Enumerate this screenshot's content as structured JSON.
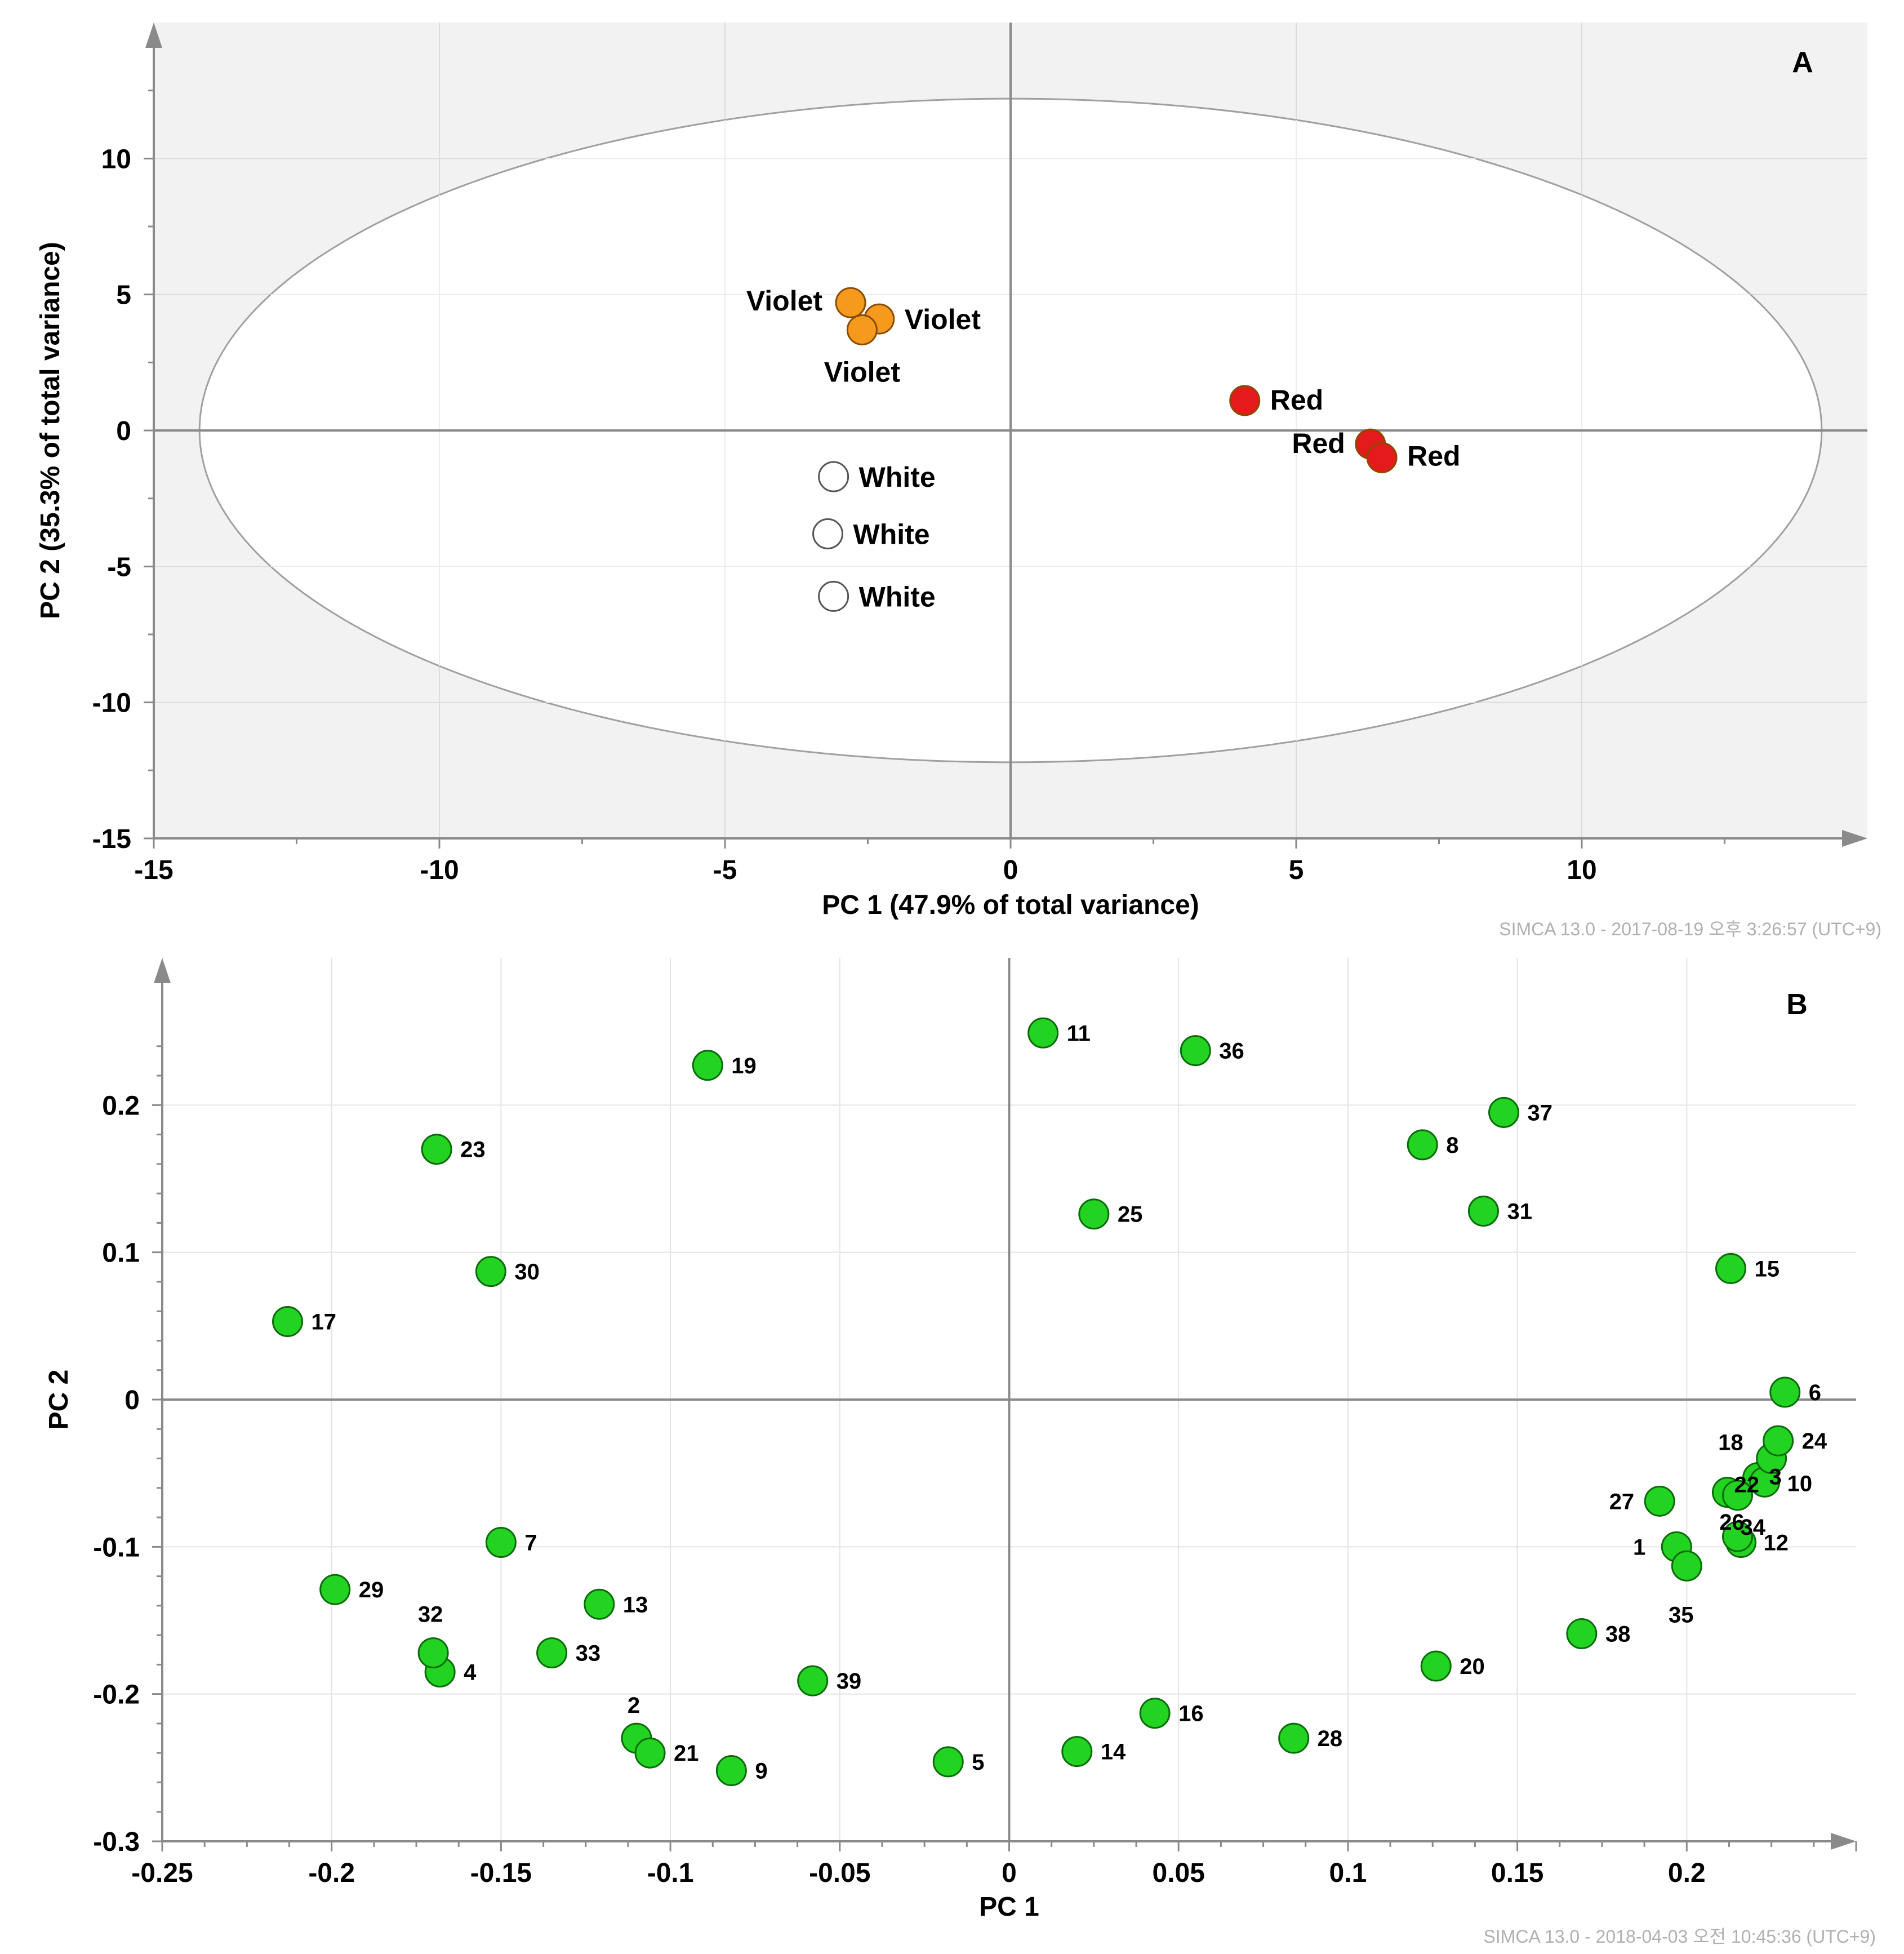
{
  "chart_data": [
    {
      "type": "scatter",
      "panel_label": "A",
      "xlabel": "PC 1 (47.9% of total variance)",
      "ylabel": "PC 2 (35.3% of total variance)",
      "xlim": [
        -15,
        15
      ],
      "ylim": [
        -15,
        15
      ],
      "xticks": [
        "-15",
        "-10",
        "-5",
        "0",
        "5",
        "10"
      ],
      "yticks": [
        "10",
        "5",
        "0",
        "-5",
        "-10",
        "-15"
      ],
      "xtick_values": [
        -15,
        -10,
        -5,
        0,
        5,
        10
      ],
      "ytick_values": [
        10,
        5,
        0,
        -5,
        -10,
        -15
      ],
      "ellipse": {
        "cx": 0,
        "cy": 0,
        "rx": 14.2,
        "ry": 12.2
      },
      "grid": true,
      "colors": {
        "Violet": "#f59a1c",
        "Red": "#e41a1c",
        "White": "#ffffff",
        "background": "#f2f2f2",
        "inside": "#ffffff"
      },
      "points": [
        {
          "label": "Violet",
          "group": "Violet",
          "x": -2.8,
          "y": 4.7
        },
        {
          "label": "Violet",
          "group": "Violet",
          "x": -2.3,
          "y": 4.1
        },
        {
          "label": "Violet",
          "group": "Violet",
          "x": -2.6,
          "y": 3.7
        },
        {
          "label": "Red",
          "group": "Red",
          "x": 4.1,
          "y": 1.1
        },
        {
          "label": "Red",
          "group": "Red",
          "x": 6.3,
          "y": -0.5
        },
        {
          "label": "Red",
          "group": "Red",
          "x": 6.5,
          "y": -1.0
        },
        {
          "label": "White",
          "group": "White",
          "x": -3.1,
          "y": -1.7
        },
        {
          "label": "White",
          "group": "White",
          "x": -3.2,
          "y": -3.8
        },
        {
          "label": "White",
          "group": "White",
          "x": -3.1,
          "y": -6.1
        }
      ],
      "watermark": "SIMCA 13.0 - 2017-08-19 오후 3:26:57 (UTC+9)"
    },
    {
      "type": "scatter",
      "panel_label": "B",
      "xlabel": "PC 1",
      "ylabel": "PC 2",
      "xlim": [
        -0.25,
        0.25
      ],
      "ylim": [
        -0.3,
        0.3
      ],
      "xticks": [
        "-0.25",
        "-0.2",
        "-0.15",
        "-0.1",
        "-0.05",
        "0",
        "0.05",
        "0.1",
        "0.15",
        "0.2"
      ],
      "yticks": [
        "0.2",
        "0.1",
        "0",
        "-0.1",
        "-0.2",
        "-0.3"
      ],
      "xtick_values": [
        -0.25,
        -0.2,
        -0.15,
        -0.1,
        -0.05,
        0,
        0.05,
        0.1,
        0.15,
        0.2
      ],
      "ytick_values": [
        0.2,
        0.1,
        0,
        -0.1,
        -0.2,
        -0.3
      ],
      "grid": true,
      "colors": {
        "point": "#22d322",
        "background": "#ffffff"
      },
      "points": [
        {
          "label": "1",
          "x": 0.197,
          "y": -0.1
        },
        {
          "label": "2",
          "x": -0.11,
          "y": -0.23
        },
        {
          "label": "3",
          "x": 0.221,
          "y": -0.053
        },
        {
          "label": "4",
          "x": -0.168,
          "y": -0.185
        },
        {
          "label": "5",
          "x": -0.018,
          "y": -0.246
        },
        {
          "label": "6",
          "x": 0.229,
          "y": 0.005
        },
        {
          "label": "7",
          "x": -0.15,
          "y": -0.097
        },
        {
          "label": "8",
          "x": 0.122,
          "y": 0.173
        },
        {
          "label": "9",
          "x": -0.082,
          "y": -0.252
        },
        {
          "label": "10",
          "x": 0.223,
          "y": -0.056
        },
        {
          "label": "11",
          "x": 0.01,
          "y": 0.249
        },
        {
          "label": "12",
          "x": 0.216,
          "y": -0.097
        },
        {
          "label": "13",
          "x": -0.121,
          "y": -0.139
        },
        {
          "label": "14",
          "x": 0.02,
          "y": -0.239
        },
        {
          "label": "15",
          "x": 0.213,
          "y": 0.089
        },
        {
          "label": "16",
          "x": 0.043,
          "y": -0.213
        },
        {
          "label": "17",
          "x": -0.213,
          "y": 0.053
        },
        {
          "label": "18",
          "x": 0.225,
          "y": -0.04
        },
        {
          "label": "19",
          "x": -0.089,
          "y": 0.227
        },
        {
          "label": "20",
          "x": 0.126,
          "y": -0.181
        },
        {
          "label": "21",
          "x": -0.106,
          "y": -0.24
        },
        {
          "label": "22",
          "x": 0.212,
          "y": -0.063
        },
        {
          "label": "23",
          "x": -0.169,
          "y": 0.17
        },
        {
          "label": "24",
          "x": 0.227,
          "y": -0.028
        },
        {
          "label": "25",
          "x": 0.025,
          "y": 0.126
        },
        {
          "label": "26",
          "x": 0.215,
          "y": -0.093
        },
        {
          "label": "27",
          "x": 0.192,
          "y": -0.069
        },
        {
          "label": "28",
          "x": 0.084,
          "y": -0.23
        },
        {
          "label": "29",
          "x": -0.199,
          "y": -0.129
        },
        {
          "label": "30",
          "x": -0.153,
          "y": 0.087
        },
        {
          "label": "31",
          "x": 0.14,
          "y": 0.128
        },
        {
          "label": "32",
          "x": -0.17,
          "y": -0.172
        },
        {
          "label": "33",
          "x": -0.135,
          "y": -0.172
        },
        {
          "label": "34",
          "x": 0.215,
          "y": -0.065
        },
        {
          "label": "35",
          "x": 0.2,
          "y": -0.113
        },
        {
          "label": "36",
          "x": 0.055,
          "y": 0.237
        },
        {
          "label": "37",
          "x": 0.146,
          "y": 0.195
        },
        {
          "label": "38",
          "x": 0.169,
          "y": -0.159
        },
        {
          "label": "39",
          "x": -0.058,
          "y": -0.191
        }
      ],
      "watermark": "SIMCA 13.0 - 2018-04-03 오전 10:45:36 (UTC+9)"
    }
  ]
}
